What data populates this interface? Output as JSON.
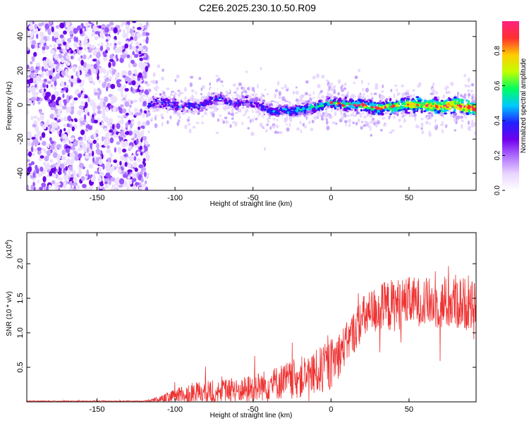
{
  "title": "C2E6.2025.230.10.50.R09",
  "chart_data": [
    {
      "type": "heatmap",
      "xlabel": "Height of straight line (km)",
      "ylabel": "Frequency (Hz)",
      "xlim": [
        -195,
        93
      ],
      "ylim": [
        -50,
        49
      ],
      "x_ticks": [
        -150,
        -100,
        -50,
        0,
        50
      ],
      "y_ticks": [
        -40,
        -20,
        0,
        20,
        40
      ],
      "colorbar": {
        "label": "Normalized spectral amplitude",
        "range": [
          0.0,
          0.97
        ],
        "ticks": [
          0.0,
          0.2,
          0.4,
          0.6,
          0.8
        ],
        "colormap": [
          "#ffffff",
          "#e8d4ff",
          "#b070ff",
          "#7000ee",
          "#2020ff",
          "#00c8ff",
          "#00ff60",
          "#c0ff00",
          "#ffcc00",
          "#ff3030",
          "#ff2080"
        ]
      },
      "noise_region": [
        -195,
        -117
      ],
      "track": {
        "x": [
          -117,
          -110,
          -100,
          -95,
          -90,
          -85,
          -80,
          -75,
          -70,
          -65,
          -60,
          -55,
          -50,
          -45,
          -40,
          -35,
          -30,
          -25,
          -20,
          -15,
          -10,
          -5,
          0,
          10,
          20,
          30,
          40,
          50,
          60,
          70,
          80,
          90
        ],
        "y": [
          0,
          2,
          0,
          -2,
          0,
          -1,
          1,
          3,
          4,
          1,
          0,
          2,
          1,
          -1,
          -3,
          -4,
          -3,
          -4,
          -3,
          -2,
          -1,
          0,
          1,
          0,
          0,
          -2,
          -1,
          0,
          0,
          -1,
          0,
          -2
        ]
      }
    },
    {
      "type": "line",
      "xlabel": "Height of straight line (km)",
      "ylabel": "SNR (10 * v/v)",
      "y_multiplier": "(x10",
      "y_multiplier_exp": "4",
      "y_multiplier_close": ")",
      "xlim": [
        -195,
        93
      ],
      "ylim": [
        0,
        2.45
      ],
      "x_ticks": [
        -150,
        -100,
        -50,
        0,
        50
      ],
      "y_ticks": [
        0.5,
        1.0,
        1.5,
        2.0
      ],
      "color": "#ee3333",
      "envelope": {
        "x": [
          -195,
          -120,
          -110,
          -100,
          -90,
          -80,
          -70,
          -60,
          -50,
          -40,
          -30,
          -20,
          -10,
          0,
          10,
          20,
          30,
          40,
          50,
          60,
          70,
          80,
          90,
          93
        ],
        "base": [
          0.01,
          0.01,
          0.03,
          0.08,
          0.12,
          0.14,
          0.16,
          0.16,
          0.2,
          0.25,
          0.3,
          0.35,
          0.42,
          0.55,
          0.85,
          1.2,
          1.35,
          1.4,
          1.45,
          1.45,
          1.4,
          1.45,
          1.4,
          1.4
        ],
        "amp": [
          0.01,
          0.01,
          0.08,
          0.18,
          0.25,
          0.3,
          0.28,
          0.28,
          0.35,
          0.38,
          0.45,
          0.5,
          0.55,
          0.6,
          0.5,
          0.55,
          0.6,
          0.65,
          0.6,
          0.6,
          0.6,
          0.7,
          0.6,
          0.5
        ]
      }
    }
  ]
}
